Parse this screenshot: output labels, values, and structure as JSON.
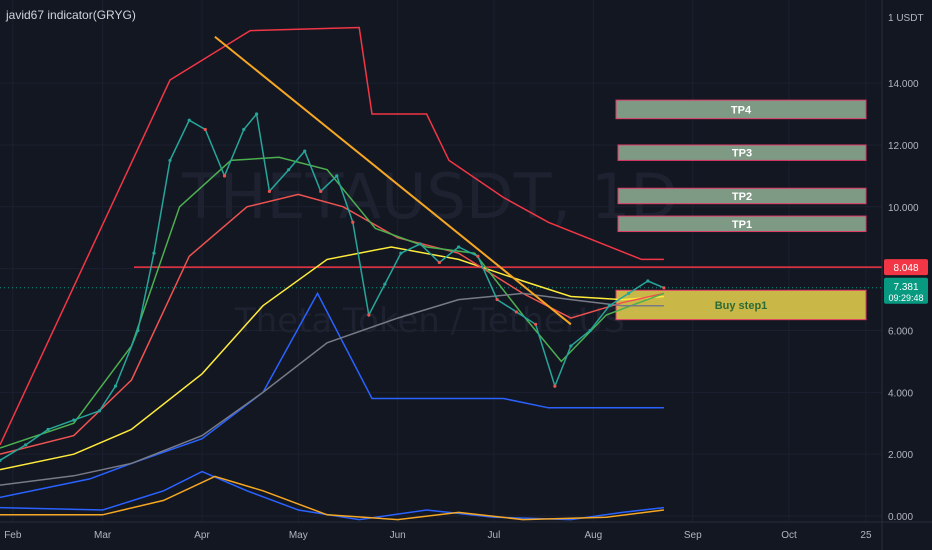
{
  "header": {
    "indicator_name": "javid67 indicator(GRYG)"
  },
  "watermark": {
    "symbol": "THETAUSDT, 1D",
    "name": "Theta Token / TetherUS"
  },
  "price_axis": {
    "currency": "USDT",
    "level_line": {
      "label": "8.048",
      "color": "#f23645"
    },
    "last_price": {
      "label": "7.381",
      "countdown": "09:29:48",
      "color": "#089981"
    }
  },
  "boxes": [
    {
      "label": "TP4",
      "low": 12.85,
      "high": 13.45,
      "color": "#7f9a84",
      "border": "#e23a68"
    },
    {
      "label": "TP3",
      "low": 11.5,
      "high": 12.0,
      "color": "#7f9a84",
      "border": "#e23a68"
    },
    {
      "label": "TP2",
      "low": 10.1,
      "high": 10.6,
      "color": "#7f9a84",
      "border": "#e23a68"
    },
    {
      "label": "TP1",
      "low": 9.2,
      "high": 9.7,
      "color": "#7f9a84",
      "border": "#e23a68"
    },
    {
      "label": "Buy step1",
      "low": 6.35,
      "high": 7.3,
      "color": "#c9b748",
      "border": "#e23a68",
      "text_color": "#2d6b34"
    }
  ],
  "chart_data": {
    "type": "line",
    "title": "THETAUSDT, 1D",
    "ylim": [
      0,
      16.3
    ],
    "y_ticks": [
      "0.000",
      "2.000",
      "4.000",
      "6.000",
      "8.000",
      "10.000",
      "12.000",
      "14.000"
    ],
    "x_ticks": [
      "Feb",
      "Mar",
      "Apr",
      "May",
      "Jun",
      "Jul",
      "Aug",
      "Sep",
      "Oct",
      "25"
    ],
    "x_range": [
      "2021-01-28",
      "2021-10-30"
    ],
    "close_series": {
      "name": "",
      "color": "#26a69a",
      "x": [
        "2021-01-28",
        "2021-02-05",
        "2021-02-12",
        "2021-02-20",
        "2021-02-28",
        "2021-03-05",
        "2021-03-12",
        "2021-03-17",
        "2021-03-22",
        "2021-03-28",
        "2021-04-02",
        "2021-04-08",
        "2021-04-14",
        "2021-04-18",
        "2021-04-22",
        "2021-04-28",
        "2021-05-03",
        "2021-05-08",
        "2021-05-13",
        "2021-05-18",
        "2021-05-23",
        "2021-05-28",
        "2021-06-02",
        "2021-06-08",
        "2021-06-14",
        "2021-06-20",
        "2021-06-26",
        "2021-07-02",
        "2021-07-08",
        "2021-07-14",
        "2021-07-20",
        "2021-07-25",
        "2021-07-31",
        "2021-08-06",
        "2021-08-12",
        "2021-08-18",
        "2021-08-23"
      ],
      "y": [
        1.8,
        2.3,
        2.8,
        3.1,
        3.4,
        4.2,
        6.0,
        8.5,
        11.5,
        12.8,
        12.5,
        11.0,
        12.5,
        13.0,
        10.5,
        11.2,
        11.8,
        10.5,
        11.0,
        9.5,
        6.5,
        7.5,
        8.5,
        8.8,
        8.2,
        8.7,
        8.4,
        7.0,
        6.6,
        6.2,
        4.2,
        5.5,
        6.0,
        6.8,
        7.2,
        7.6,
        7.38
      ]
    },
    "series": [
      {
        "name": "",
        "color": "#f23645",
        "x": [
          "2021-01-28",
          "2021-03-22",
          "2021-04-16",
          "2021-05-20",
          "2021-05-24",
          "2021-06-10",
          "2021-06-17",
          "2021-07-04",
          "2021-07-18",
          "2021-08-16",
          "2021-08-23"
        ],
        "y": [
          2.3,
          14.1,
          15.7,
          15.8,
          13.0,
          13.0,
          11.5,
          10.3,
          9.5,
          8.3,
          8.3
        ]
      },
      {
        "name": "",
        "color": "#2962ff",
        "x": [
          "2021-01-28",
          "2021-02-25",
          "2021-03-10",
          "2021-04-01",
          "2021-04-20",
          "2021-05-07",
          "2021-05-24",
          "2021-07-04",
          "2021-07-18",
          "2021-08-05",
          "2021-08-23"
        ],
        "y": [
          0.6,
          1.2,
          1.7,
          2.5,
          4.0,
          7.2,
          3.8,
          3.8,
          3.5,
          3.5,
          3.5
        ]
      },
      {
        "name": "",
        "color": "#ffeb3b",
        "x": [
          "2021-01-28",
          "2021-02-20",
          "2021-03-10",
          "2021-04-01",
          "2021-04-20",
          "2021-05-10",
          "2021-05-30",
          "2021-06-20",
          "2021-07-10",
          "2021-07-25",
          "2021-08-10",
          "2021-08-23"
        ],
        "y": [
          1.5,
          2.0,
          2.8,
          4.6,
          6.8,
          8.3,
          8.7,
          8.3,
          7.6,
          7.1,
          7.0,
          7.1
        ]
      },
      {
        "name": "",
        "color": "#ef5350",
        "x": [
          "2021-01-28",
          "2021-02-20",
          "2021-03-10",
          "2021-03-28",
          "2021-04-15",
          "2021-05-01",
          "2021-05-15",
          "2021-06-01",
          "2021-06-20",
          "2021-07-10",
          "2021-07-25",
          "2021-08-10",
          "2021-08-23"
        ],
        "y": [
          2.0,
          2.6,
          4.4,
          8.4,
          10.0,
          10.4,
          10.0,
          9.0,
          8.5,
          7.2,
          6.4,
          6.9,
          7.2
        ]
      },
      {
        "name": "",
        "color": "#4caf50",
        "x": [
          "2021-01-28",
          "2021-02-20",
          "2021-03-10",
          "2021-03-25",
          "2021-04-10",
          "2021-04-25",
          "2021-05-10",
          "2021-05-25",
          "2021-06-10",
          "2021-06-25",
          "2021-07-10",
          "2021-07-22",
          "2021-08-05",
          "2021-08-23"
        ],
        "y": [
          2.2,
          3.0,
          5.5,
          10.0,
          11.5,
          11.6,
          11.2,
          9.3,
          8.7,
          8.5,
          6.5,
          5.0,
          6.5,
          7.2
        ]
      },
      {
        "name": "",
        "color": "#787b86",
        "x": [
          "2021-01-28",
          "2021-02-20",
          "2021-03-10",
          "2021-04-01",
          "2021-04-20",
          "2021-05-10",
          "2021-06-01",
          "2021-06-20",
          "2021-07-10",
          "2021-07-25",
          "2021-08-10",
          "2021-08-23"
        ],
        "y": [
          1.0,
          1.3,
          1.7,
          2.6,
          4.0,
          5.6,
          6.4,
          7.0,
          7.2,
          7.0,
          6.8,
          6.8
        ]
      }
    ],
    "trendline": {
      "color": "#f5a623",
      "x": [
        "2021-04-05",
        "2021-07-25"
      ],
      "y": [
        15.5,
        6.2
      ]
    },
    "oscillator": {
      "range": [
        0,
        3
      ],
      "series": [
        {
          "name": "",
          "color": "#2962ff",
          "x": [
            "2021-01-28",
            "2021-03-01",
            "2021-03-20",
            "2021-04-01",
            "2021-04-15",
            "2021-05-01",
            "2021-05-20",
            "2021-06-10",
            "2021-07-01",
            "2021-07-25",
            "2021-08-10",
            "2021-08-23"
          ],
          "y": [
            0.6,
            0.5,
            1.3,
            2.1,
            1.3,
            0.5,
            0.1,
            0.5,
            0.2,
            0.1,
            0.4,
            0.6
          ]
        },
        {
          "name": "",
          "color": "#f5a623",
          "x": [
            "2021-01-28",
            "2021-03-01",
            "2021-03-20",
            "2021-04-05",
            "2021-04-20",
            "2021-05-10",
            "2021-06-01",
            "2021-06-20",
            "2021-07-10",
            "2021-08-05",
            "2021-08-23"
          ],
          "y": [
            0.3,
            0.3,
            0.9,
            1.9,
            1.3,
            0.3,
            0.1,
            0.4,
            0.1,
            0.2,
            0.5
          ]
        }
      ]
    }
  }
}
